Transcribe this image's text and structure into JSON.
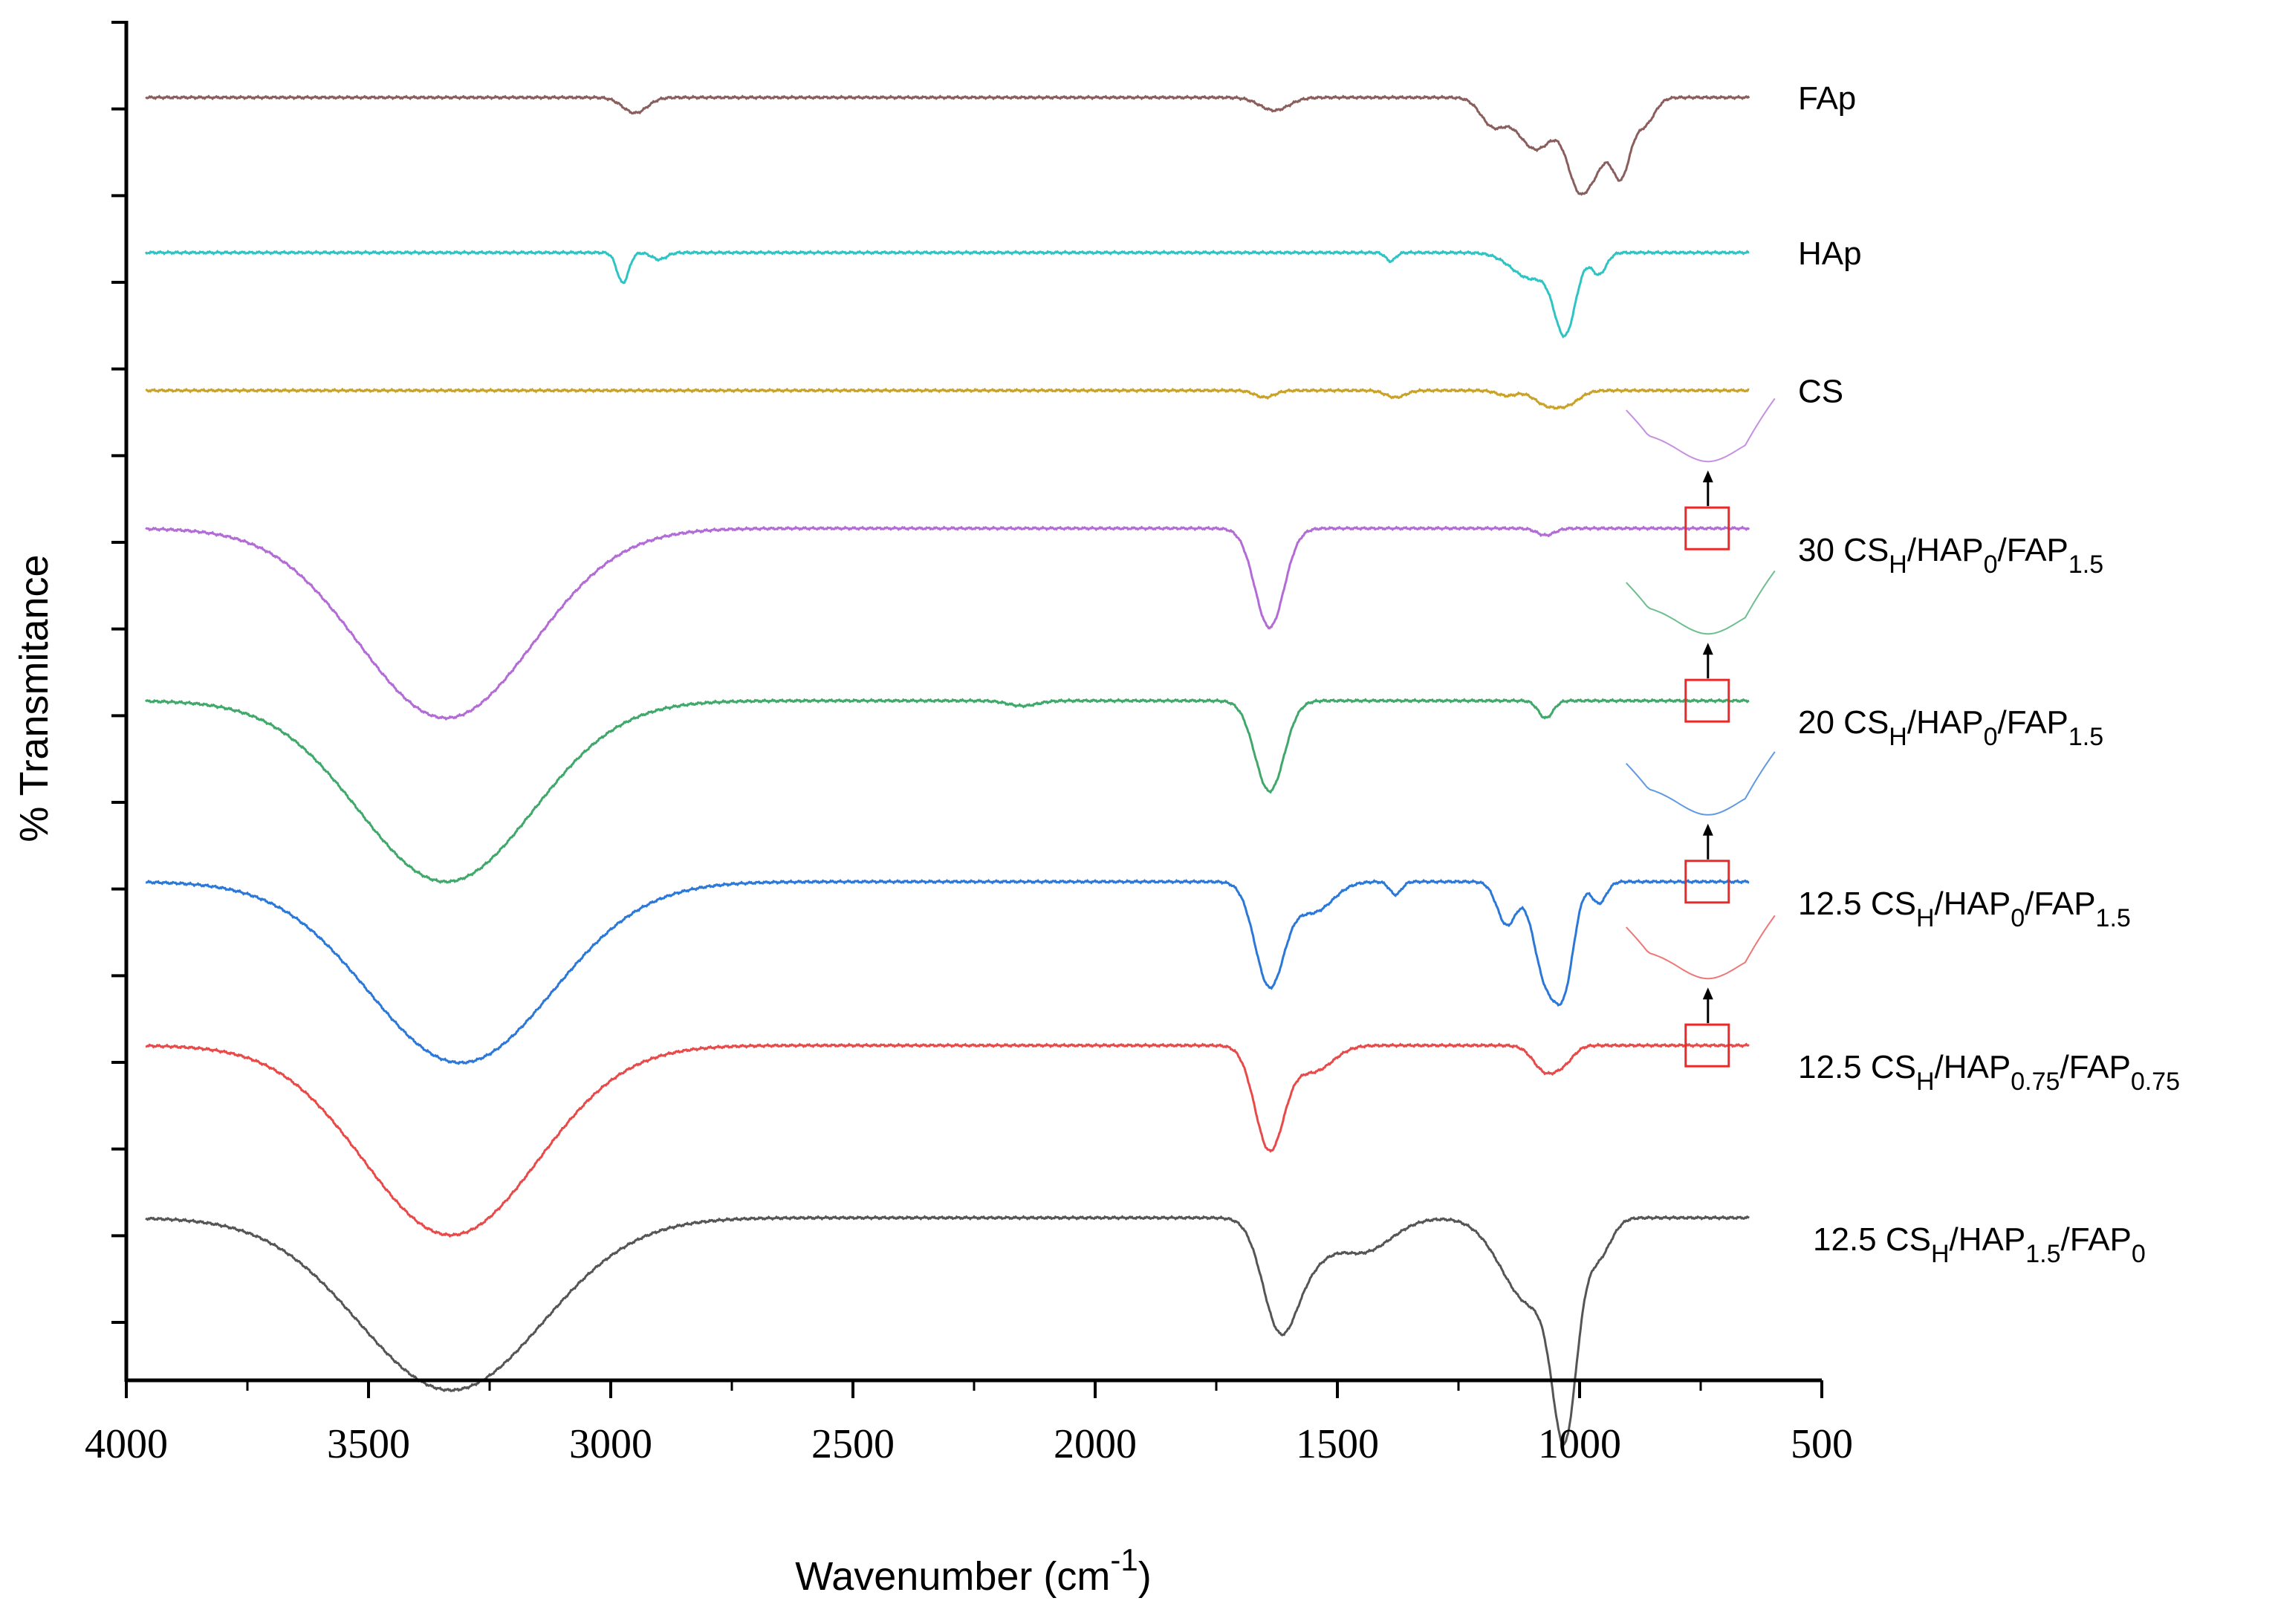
{
  "chart_data": {
    "type": "line",
    "title": "",
    "xlabel": "Wavenumber",
    "xlabel_unit": "cm",
    "xlabel_unit_exponent": "-1",
    "ylabel": "% Transmitance",
    "xlim": [
      4000,
      500
    ],
    "x_ticks": [
      "4000",
      "3500",
      "3000",
      "2500",
      "2000",
      "1500",
      "1000",
      "500"
    ],
    "x_tick_values": [
      4000,
      3500,
      3000,
      2500,
      2000,
      1500,
      1000,
      500
    ],
    "y_axis_ticks_count": 16,
    "baseline_offsets": [
      0.2,
      2.0,
      3.6,
      5.2,
      7.2,
      9.3,
      11.2,
      13.2
    ],
    "inset_series": [
      "30 CS/HAP0/FAP1.5",
      "20 CS/HAP0/FAP1.5",
      "12.5 CS/HAP0/FAP1.5",
      "12.5 CS/HAP0.75/FAP0.75"
    ],
    "series": [
      {
        "name": "FAp",
        "label": [
          {
            "t": "FAp",
            "s": ""
          }
        ],
        "color": "#8B5E5E",
        "features": [
          [
            2950,
            0.18,
            25
          ],
          [
            1630,
            0.15,
            30
          ],
          [
            1180,
            0.3,
            25
          ],
          [
            1090,
            0.6,
            40
          ],
          [
            1000,
            1.0,
            25
          ],
          [
            960,
            0.5,
            20
          ],
          [
            915,
            0.9,
            20
          ],
          [
            865,
            0.3,
            20
          ]
        ]
      },
      {
        "name": "HAp",
        "label": [
          {
            "t": "HAp",
            "s": ""
          }
        ],
        "color": "#2EC4C4",
        "features": [
          [
            2975,
            0.35,
            12
          ],
          [
            2900,
            0.08,
            15
          ],
          [
            1390,
            0.1,
            10
          ],
          [
            1100,
            0.3,
            40
          ],
          [
            1030,
            0.9,
            22
          ],
          [
            960,
            0.25,
            15
          ]
        ]
      },
      {
        "name": "CS",
        "label": [
          {
            "t": "CS",
            "s": ""
          }
        ],
        "color": "#C9A227",
        "features": [
          [
            1650,
            0.08,
            20
          ],
          [
            1380,
            0.08,
            20
          ],
          [
            1150,
            0.06,
            20
          ],
          [
            1070,
            0.15,
            25
          ],
          [
            1025,
            0.15,
            25
          ]
        ]
      },
      {
        "name": "30 CSH/HAP0/FAP1.5",
        "label": [
          {
            "t": "30 CS",
            "s": ""
          },
          {
            "t": "H",
            "s": "sub"
          },
          {
            "t": "/HAP",
            "s": ""
          },
          {
            "t": "0",
            "s": "sub"
          },
          {
            "t": "/FAP",
            "s": ""
          },
          {
            "t": "1.5",
            "s": "sub"
          }
        ],
        "color": "#B36BD6",
        "features": [
          [
            3340,
            2.2,
            180
          ],
          [
            1640,
            1.15,
            30
          ],
          [
            1070,
            0.08,
            18
          ]
        ]
      },
      {
        "name": "20 CSH/HAP0/FAP1.5",
        "label": [
          {
            "t": "20 CS",
            "s": ""
          },
          {
            "t": "H",
            "s": "sub"
          },
          {
            "t": "/HAP",
            "s": ""
          },
          {
            "t": "0",
            "s": "sub"
          },
          {
            "t": "/FAP",
            "s": ""
          },
          {
            "t": "1.5",
            "s": "sub"
          }
        ],
        "color": "#3FA86A",
        "features": [
          [
            3340,
            2.1,
            180
          ],
          [
            1640,
            1.05,
            30
          ],
          [
            1070,
            0.2,
            15
          ],
          [
            2150,
            0.06,
            30
          ]
        ]
      },
      {
        "name": "12.5 CSH/HAP0/FAP1.5",
        "label": [
          {
            "t": "12.5 CS",
            "s": ""
          },
          {
            "t": "H",
            "s": "sub"
          },
          {
            "t": "/HAP",
            "s": ""
          },
          {
            "t": "0",
            "s": "sub"
          },
          {
            "t": "/FAP",
            "s": ""
          },
          {
            "t": "1.5",
            "s": "sub"
          }
        ],
        "color": "#2B78D8",
        "features": [
          [
            3310,
            2.1,
            190
          ],
          [
            1640,
            1.2,
            30
          ],
          [
            1550,
            0.35,
            40
          ],
          [
            1380,
            0.15,
            12
          ],
          [
            1150,
            0.5,
            20
          ],
          [
            1070,
            1.1,
            25
          ],
          [
            1030,
            1.0,
            20
          ],
          [
            960,
            0.25,
            15
          ]
        ]
      },
      {
        "name": "12.5 CSH/HAP0.75/FAP0.75",
        "label": [
          {
            "t": "12.5 CS",
            "s": ""
          },
          {
            "t": "H",
            "s": "sub"
          },
          {
            "t": "/HAP",
            "s": ""
          },
          {
            "t": "0.75",
            "s": "sub"
          },
          {
            "t": "/FAP",
            "s": ""
          },
          {
            "t": "0.75",
            "s": "sub"
          }
        ],
        "color": "#E84A4A",
        "features": [
          [
            3330,
            2.2,
            180
          ],
          [
            1640,
            1.2,
            30
          ],
          [
            1550,
            0.3,
            40
          ],
          [
            1070,
            0.3,
            25
          ],
          [
            1030,
            0.15,
            20
          ]
        ]
      },
      {
        "name": "12.5 CSH/HAP1.5/FAP0",
        "label": [
          {
            "t": "12.5 CS",
            "s": ""
          },
          {
            "t": "H",
            "s": "sub"
          },
          {
            "t": "/HAP",
            "s": ""
          },
          {
            "t": "1.5",
            "s": "sub"
          },
          {
            "t": "/FAP",
            "s": ""
          },
          {
            "t": "0",
            "s": "sub"
          }
        ],
        "color": "#555555",
        "features": [
          [
            3330,
            2.0,
            190
          ],
          [
            1620,
            1.2,
            35
          ],
          [
            1560,
            0.4,
            40
          ],
          [
            1450,
            0.4,
            60
          ],
          [
            1100,
            1.0,
            60
          ],
          [
            1030,
            2.1,
            25
          ],
          [
            960,
            0.4,
            25
          ]
        ]
      }
    ]
  }
}
